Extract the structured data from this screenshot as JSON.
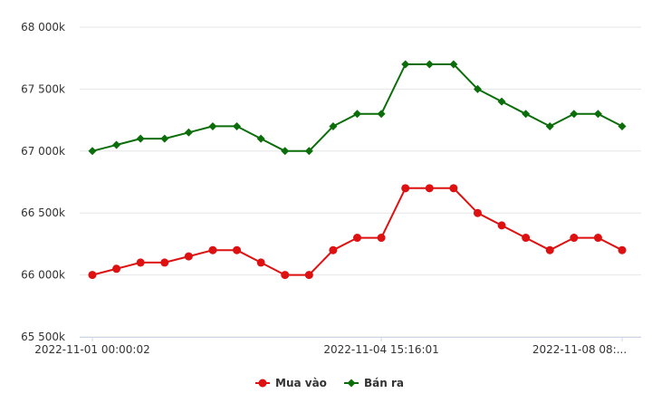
{
  "chart_data": {
    "type": "line",
    "title": "",
    "xlabel": "",
    "ylabel": "",
    "ylim": [
      65500,
      68000
    ],
    "yticks": [
      65500,
      66000,
      66500,
      67000,
      67500,
      68000
    ],
    "ytick_labels": [
      "65 500k",
      "66 000k",
      "66 500k",
      "67 000k",
      "67 500k",
      "68 000k"
    ],
    "xtick_labels": [
      {
        "index": 0,
        "label": "2022-11-01 00:00:02"
      },
      {
        "index": 12,
        "label": "2022-11-04 15:16:01"
      },
      {
        "index": 22,
        "label": "2022-11-08 08:..."
      }
    ],
    "grid": "horizontal",
    "legend_position": "bottom",
    "series": [
      {
        "name": "Mua vào",
        "color": "#dd1111",
        "marker": "circle",
        "values": [
          66000,
          66050,
          66100,
          66100,
          66150,
          66200,
          66200,
          66100,
          66000,
          66000,
          66200,
          66300,
          66300,
          66700,
          66700,
          66700,
          66500,
          66400,
          66300,
          66200,
          66300,
          66300,
          66200
        ]
      },
      {
        "name": "Bán ra",
        "color": "#0b6e0b",
        "marker": "diamond",
        "values": [
          67000,
          67050,
          67100,
          67100,
          67150,
          67200,
          67200,
          67100,
          67000,
          67000,
          67200,
          67300,
          67300,
          67700,
          67700,
          67700,
          67500,
          67400,
          67300,
          67200,
          67300,
          67300,
          67200
        ]
      }
    ]
  }
}
